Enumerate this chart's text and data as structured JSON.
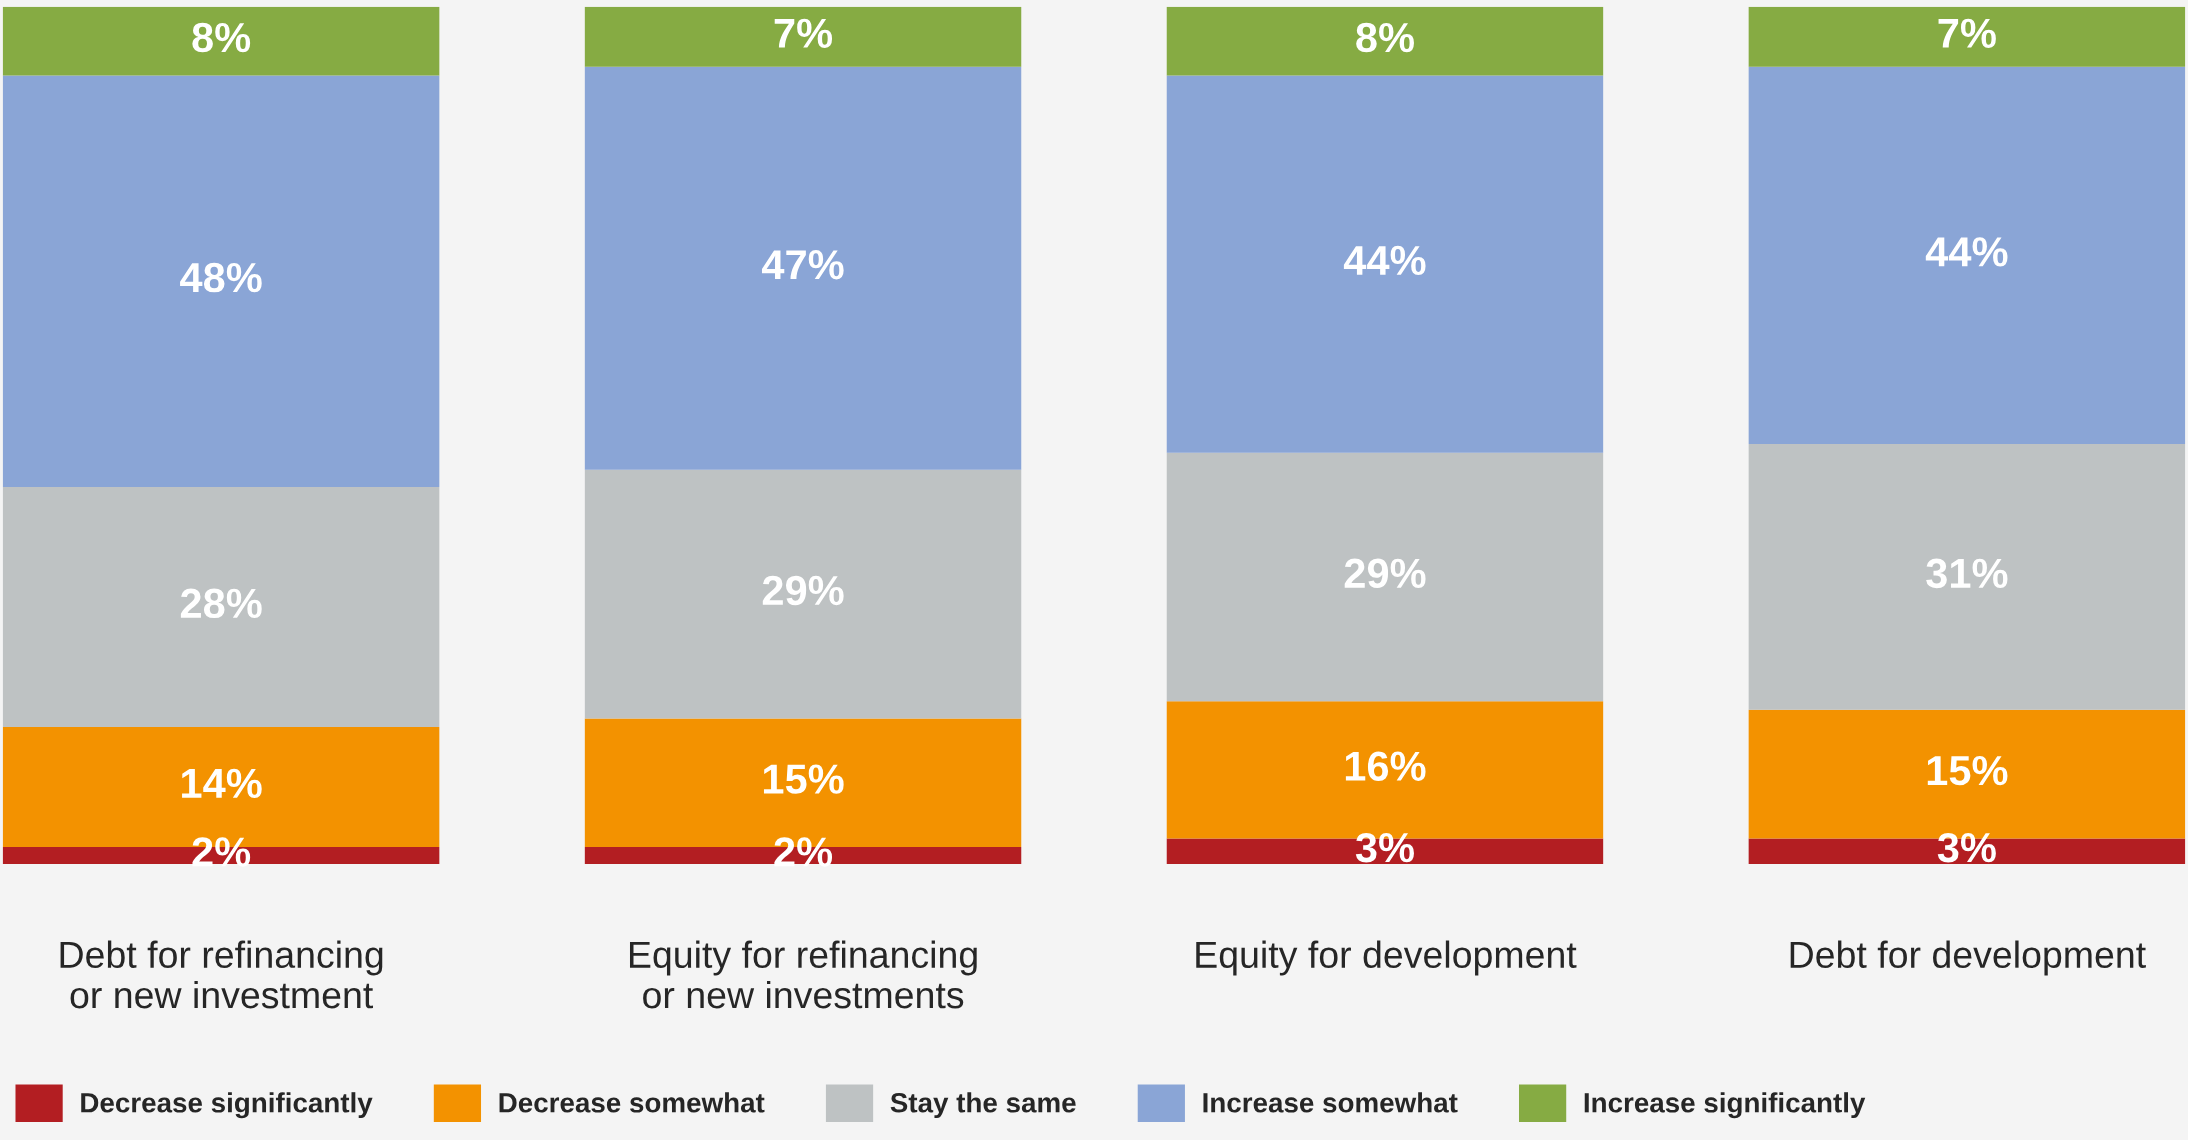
{
  "chart_data": {
    "type": "bar",
    "stacked": true,
    "legend": "bottom left",
    "grid": false,
    "categories": [
      "Debt for refinancing\nor new investment",
      "Equity for refinancing\nor new investments",
      "Equity for development",
      "Debt for development"
    ],
    "series": [
      {
        "name": "Decrease significantly",
        "color": "#b31e22",
        "values": [
          2,
          2,
          3,
          3
        ],
        "value_labels": [
          "2%",
          "2%",
          "3%",
          "3%"
        ]
      },
      {
        "name": "Decrease somewhat",
        "color": "#f39200",
        "values": [
          14,
          15,
          16,
          15
        ],
        "value_labels": [
          "14%",
          "15%",
          "16%",
          "15%"
        ]
      },
      {
        "name": "Stay the same",
        "color": "#bec2c3",
        "values": [
          28,
          29,
          29,
          31
        ],
        "value_labels": [
          "28%",
          "29%",
          "29%",
          "31%"
        ]
      },
      {
        "name": "Increase somewhat",
        "color": "#8aa5d6",
        "values": [
          48,
          47,
          44,
          44
        ],
        "value_labels": [
          "48%",
          "47%",
          "44%",
          "44%"
        ]
      },
      {
        "name": "Increase significantly",
        "color": "#86ab43",
        "values": [
          8,
          7,
          8,
          7
        ],
        "value_labels": [
          "8%",
          "7%",
          "8%",
          "7%"
        ]
      }
    ]
  }
}
